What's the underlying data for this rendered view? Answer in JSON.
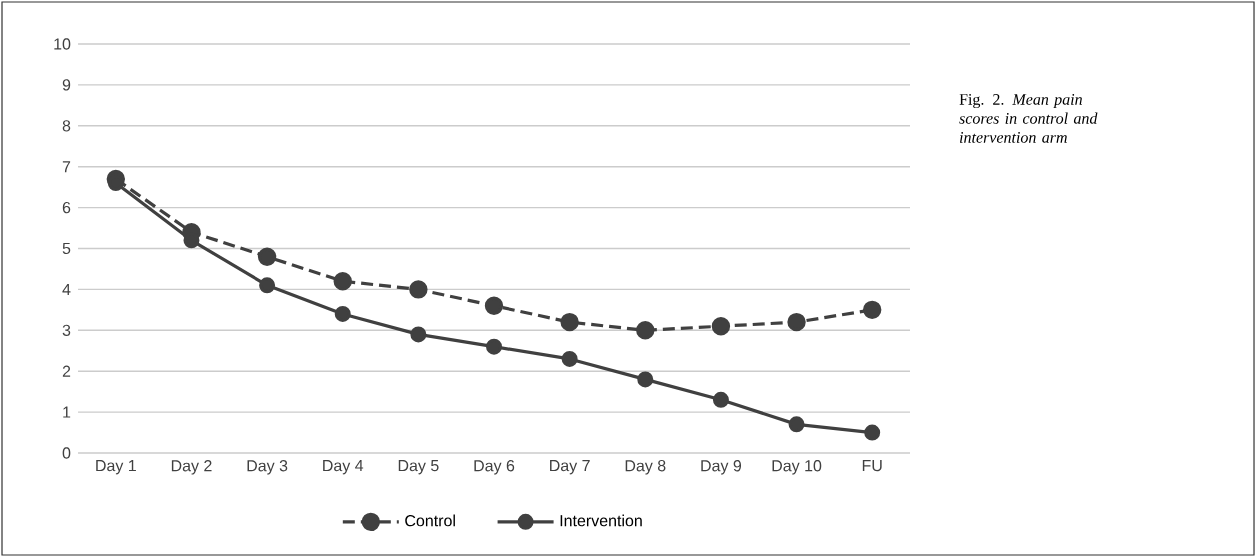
{
  "chart_data": {
    "type": "line",
    "categories": [
      "Day 1",
      "Day 2",
      "Day 3",
      "Day 4",
      "Day 5",
      "Day 6",
      "Day 7",
      "Day 8",
      "Day 9",
      "Day 10",
      "FU"
    ],
    "series": [
      {
        "name": "Control",
        "color": "#404040",
        "line_style": "dashed",
        "values": [
          6.7,
          5.4,
          4.8,
          4.2,
          4.0,
          3.6,
          3.2,
          3.0,
          3.1,
          3.2,
          3.5
        ]
      },
      {
        "name": "Intervention",
        "color": "#404040",
        "line_style": "solid",
        "values": [
          6.6,
          5.2,
          4.1,
          3.4,
          2.9,
          2.6,
          2.3,
          1.8,
          1.3,
          0.7,
          0.5
        ]
      }
    ],
    "ylim": [
      0,
      10
    ],
    "yticks": [
      0,
      1,
      2,
      3,
      4,
      5,
      6,
      7,
      8,
      9,
      10
    ],
    "grid": "y",
    "legend": "bottom",
    "marker": "circle",
    "annotations": [
      "Fig. 2. *Mean pain scores in control and intervention arm*"
    ]
  }
}
